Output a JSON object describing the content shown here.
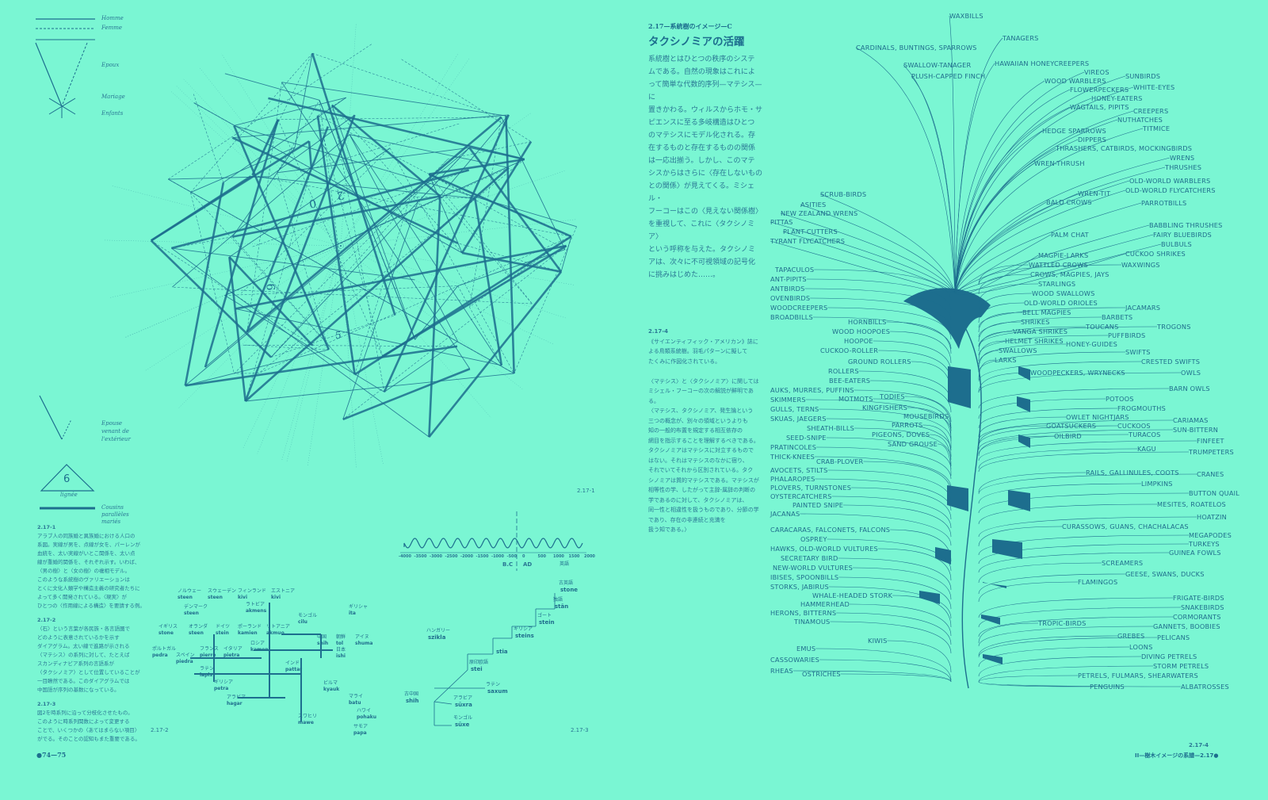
{
  "legend": {
    "homme": "Homme",
    "femme": "Femme",
    "epoux": "Epoux",
    "mariage": "Mariage",
    "enfants": "Enfants",
    "epouse": "Epouse venant de l'extérieur",
    "lignee_num": "6",
    "lignee": "lignée",
    "cousins": "Cousins parallèles mariés"
  },
  "fig_labels": {
    "f1": "2.17-1",
    "f2": "2.17-2",
    "f3": "2.17-3",
    "f4": "2.17-4"
  },
  "network_numbers": [
    "2",
    "0",
    "6",
    "5"
  ],
  "captions_left": [
    {
      "num": "2.17-1",
      "lines": [
        "アラブ人の同族婚と異族婚における人口の",
        "系図。実線が男を、点線が女を、パーレンが",
        "血統を、太い実線がいとこ関係を、太い点",
        "線が重婚的関係を、それぞれ示す。いわば、",
        "〈男の樹〉と〈女の樹〉の複相モデル。",
        "このような系統樹のヴァリエーションは",
        "とくに文化人類学や構造主義の研究者たちに",
        "よって多く開発されている。〈現実〉が",
        "ひとつの〈作用線による構造〉を要請する例。"
      ]
    },
    {
      "num": "2.17-2",
      "lines": [
        "〈石〉という言葉が各民族・各言語圏で",
        "どのように表意されているかを示す",
        "ダイアグラム。太い線で進路が示される",
        "〈マテシス〉の系列に対して、たとえば",
        "スカンディナビア系列の言語系が",
        "〈タクシノミア〉として位置していることが",
        "一目瞭然である。このダイアグラムでは",
        "中国語が序列の基数になっている。"
      ]
    },
    {
      "num": "2.17-3",
      "lines": [
        "図2を時系列に沿って分枝化させたもの。",
        "このように時系列関数によって変更する",
        "ことで、いくつかの〈あてはまらない項目〉",
        "がでる。そのことの認知もまた重要である。"
      ]
    }
  ],
  "section": {
    "kicker": "2.17—系統樹のイメージ—C",
    "title": "タクシノミアの活躍",
    "body": [
      "系統樹とはひとつの秩序のシステ",
      "ムである。自然の現象はこれによ",
      "って簡単な代数的序列—マテシス—に",
      "置きかわる。ウィルスからホモ・サ",
      "ピエンスに至る多岐構造はひとつ",
      "のマテシスにモデル化される。存",
      "在するものと存在するものの関係",
      "は一応出揃う。しかし、このマテ",
      "シスからはさらに〈存在しないもの",
      "との関係〉が見えてくる。ミシェル・",
      "フーコーはこの〈見えない関係樹〉",
      "を重視して、これに〈タクシノミア〉",
      "という呼称を与えた。タクシノミ",
      "アは、次々に不可視領域の記号化",
      "に挑みはじめた……。"
    ]
  },
  "caption_right": {
    "num": "2.17-4",
    "lines": [
      "《サイエンティフィック・アメリカン》誌に",
      "よる鳥類系統樹。羽毛パターンに擬して",
      "たくみに作図化されている。",
      "",
      "〈マテシス〉と〈タクシノミア〉に関しては",
      "ミシェル・フーコーの次の解説が鮮明である。",
      "〈マテシス、タクシノミア、発生論という",
      "三つの概念が、別々の領域というよりも",
      "知の一般的布置を規定する相互依存の",
      "網目を指示することを理解するべきである。",
      "タクシノミアはマテシスに対立するもので",
      "はない。それはマテシスのなかに宿り、",
      "それでいてそれから区別されている。タク",
      "シノミアは質的マテシスである。マテシスが",
      "相等性の学、したがって主辞-属辞の判断の",
      "学であるのに対して、タクシノミアは、",
      "同一性と相違性を扱うものであり、分節の学",
      "であり、存在の非連続と充満を",
      "扱う知である。〉"
    ]
  },
  "timeline": {
    "ticks": [
      "-4000",
      "-3500",
      "-3000",
      "-2500",
      "-2000",
      "-1500",
      "-1000",
      "-500",
      "0",
      "500",
      "1000",
      "1500",
      "2000"
    ],
    "bc": "B.C",
    "ad": "AD"
  },
  "lang_tree": [
    {
      "jp": "古中国",
      "w": "shih"
    },
    {
      "jp": "原印欧語",
      "w": "stei"
    },
    {
      "jp": "",
      "w": "stia"
    },
    {
      "jp": "ギリシア",
      "w": "steins"
    },
    {
      "jp": "ゴート",
      "w": "stein"
    },
    {
      "jp": "独語",
      "w": "stān"
    },
    {
      "jp": "古英語",
      "w": "stone"
    },
    {
      "jp": "英語",
      "w": ""
    },
    {
      "jp": "ハンガリー",
      "w": "szikla"
    },
    {
      "jp": "ラテン",
      "w": "saxum"
    },
    {
      "jp": "アラビア",
      "w": "sūxra"
    },
    {
      "jp": "モンゴル",
      "w": "sūxe"
    }
  ],
  "lang_map": [
    {
      "jp": "ノルウェー",
      "w": "steen"
    },
    {
      "jp": "スウェーデン",
      "w": "steen"
    },
    {
      "jp": "フィンランド",
      "w": "kivi"
    },
    {
      "jp": "エストニア",
      "w": "kivi"
    },
    {
      "jp": "デンマーク",
      "w": "steen"
    },
    {
      "jp": "ラトビア",
      "w": "akmens"
    },
    {
      "jp": "イギリス",
      "w": "stone"
    },
    {
      "jp": "オランダ",
      "w": "steen"
    },
    {
      "jp": "ドイツ",
      "w": "stein"
    },
    {
      "jp": "ポーランド",
      "w": "kamien"
    },
    {
      "jp": "リトアニア",
      "w": "akmuo"
    },
    {
      "jp": "モンゴル",
      "w": "cilu"
    },
    {
      "jp": "中国",
      "w": "shih"
    },
    {
      "jp": "朝鮮",
      "w": "tol"
    },
    {
      "jp": "日本",
      "w": "ishi"
    },
    {
      "jp": "アイヌ",
      "w": "shuma"
    },
    {
      "jp": "ギリシャ",
      "w": "ita"
    },
    {
      "jp": "ポルトガル",
      "w": "pedra"
    },
    {
      "jp": "スペイン",
      "w": "piedra"
    },
    {
      "jp": "フランス",
      "w": "pierre"
    },
    {
      "jp": "イタリア",
      "w": "pietra"
    },
    {
      "jp": "ロシア",
      "w": "kamen"
    },
    {
      "jp": "インド",
      "w": "pattar"
    },
    {
      "jp": "ビルマ",
      "w": "kyauk"
    },
    {
      "jp": "マライ",
      "w": "batu"
    },
    {
      "jp": "ハワイ",
      "w": "pohaku"
    },
    {
      "jp": "ラテン",
      "w": "lapis"
    },
    {
      "jp": "ギリシア",
      "w": "petra"
    },
    {
      "jp": "アラビア",
      "w": "hagar"
    },
    {
      "jp": "スワヒリ",
      "w": "mawe"
    },
    {
      "jp": "サモア",
      "w": "papa"
    }
  ],
  "birds": [
    "WAXBILLS",
    "CARDINALS, BUNTINGS, SPARROWS",
    "TANAGERS",
    "SWALLOW-TANAGER",
    "PLUSH-CAPPED FINCH",
    "HAWAIIAN HONEYCREEPERS",
    "WOOD WARBLERS",
    "VIREOS",
    "SUNBIRDS",
    "FLOWERPECKERS",
    "WHITE-EYES",
    "HONEY-EATERS",
    "WAGTAILS, PIPITS",
    "CREEPERS",
    "NUTHATCHES",
    "TITMICE",
    "HEDGE SPARROWS",
    "DIPPERS",
    "THRASHERS, CATBIRDS, MOCKINGBIRDS",
    "WRENS",
    "THRUSHES",
    "WREN-THRUSH",
    "OLD-WORLD WARBLERS",
    "OLD-WORLD FLYCATCHERS",
    "WREN-TIT",
    "PARROTBILLS",
    "BALD CROWS",
    "BABBLING THRUSHES",
    "FAIRY BLUEBIRDS",
    "BULBULS",
    "PALM CHAT",
    "CUCKOO SHRIKES",
    "WAXWINGS",
    "MAGPIE-LARKS",
    "WATTLED CROWS",
    "CROWS, MAGPIES, JAYS",
    "STARLINGS",
    "WOOD SWALLOWS",
    "OLD-WORLD ORIOLES",
    "BELL MAGPIES",
    "SHRIKES",
    "VANGA SHRIKES",
    "HELMET SHRIKES",
    "SWALLOWS",
    "LARKS",
    "SCRUB-BIRDS",
    "ASITIES",
    "NEW ZEALAND WRENS",
    "PITTAS",
    "PLANT-CUTTERS",
    "TYRANT FLYCATCHERS",
    "TAPACULOS",
    "ANT-PIPITS",
    "ANTBIRDS",
    "OVENBIRDS",
    "WOODCREEPERS",
    "BROADBILLS",
    "HORNBILLS",
    "WOOD HOOPOES",
    "HOOPOE",
    "CUCKOO-ROLLER",
    "GROUND ROLLERS",
    "ROLLERS",
    "BEE-EATERS",
    "MOTMOTS",
    "TODIES",
    "KINGFISHERS",
    "MOUSEBIRDS",
    "PARROTS",
    "PIGEONS, DOVES",
    "SAND GROUSE",
    "AUKS, MURRES, PUFFINS",
    "SKIMMERS",
    "GULLS, TERNS",
    "SKUAS, JAEGERS",
    "SHEATH-BILLS",
    "SEED-SNIPE",
    "PRATINCOLES",
    "THICK-KNEES",
    "CRAB-PLOVER",
    "AVOCETS, STILTS",
    "PHALAROPES",
    "PLOVERS, TURNSTONES",
    "OYSTERCATCHERS",
    "PAINTED SNIPE",
    "JACANAS",
    "CARACARAS, FALCONETS, FALCONS",
    "OSPREY",
    "HAWKS, OLD-WORLD VULTURES",
    "SECRETARY BIRD",
    "NEW-WORLD VULTURES",
    "IBISES, SPOONBILLS",
    "STORKS, JABIRUS",
    "WHALE-HEADED STORK",
    "HAMMERHEAD",
    "HERONS, BITTERNS",
    "TINAMOUS",
    "KIWIS",
    "EMUS",
    "CASSOWARIES",
    "RHEAS",
    "OSTRICHES",
    "WOODPECKERS, WRYNECKS",
    "HONEY-GUIDES",
    "TOUCANS",
    "BARBETS",
    "PUFFBIRDS",
    "JACAMARS",
    "TROGONS",
    "SWIFTS",
    "CRESTED SWIFTS",
    "OWLS",
    "BARN OWLS",
    "GOATSUCKERS",
    "OWLET NIGHTJARS",
    "POTOOS",
    "FROGMOUTHS",
    "OILBIRD",
    "CUCKOOS",
    "TURACOS",
    "CARIAMAS",
    "SUN-BITTERN",
    "KAGU",
    "FINFEET",
    "TRUMPETERS",
    "RAILS, GALLINULES, COOTS",
    "LIMPKINS",
    "CRANES",
    "BUTTON QUAIL",
    "MESITES, ROATELOS",
    "HOATZIN",
    "CURASSOWS, GUANS, CHACHALACAS",
    "MEGAPODES",
    "TURKEYS",
    "GUINEA FOWLS",
    "SCREAMERS",
    "GEESE, SWANS, DUCKS",
    "FLAMINGOS",
    "FRIGATE-BIRDS",
    "SNAKEBIRDS",
    "CORMORANTS",
    "TROPIC-BIRDS",
    "GANNETS, BOOBIES",
    "GREBES",
    "PELICANS",
    "LOONS",
    "DIVING PETRELS",
    "STORM PETRELS",
    "PETRELS, FULMARS, SHEARWATERS",
    "ALBATROSSES",
    "PENGUINS"
  ],
  "footer": {
    "left": "●74—75",
    "right": "II—樹木イメージの系譜—2.17●"
  },
  "colors": {
    "background": "#7af6d3",
    "ink": "#1d6e8e"
  }
}
